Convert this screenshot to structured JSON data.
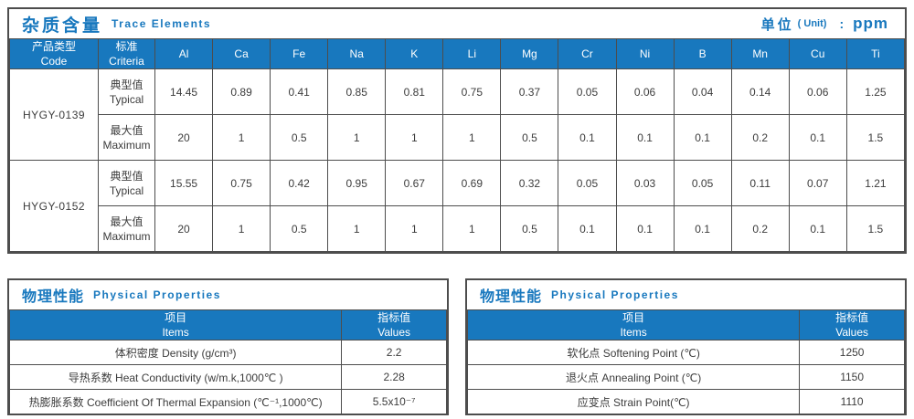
{
  "colors": {
    "accent_blue": "#1878BE",
    "border_gray": "#4D4D4D"
  },
  "trace_section": {
    "title_zh": "杂质含量",
    "title_en": "Trace Elements",
    "unit": {
      "zh": "单位",
      "en": "( Unit)",
      "colon": ":",
      "value": "ppm"
    },
    "headers": {
      "code_zh": "产品类型",
      "code_en": "Code",
      "criteria_zh": "标准",
      "criteria_en": "Criteria"
    },
    "elements": [
      "Al",
      "Ca",
      "Fe",
      "Na",
      "K",
      "Li",
      "Mg",
      "Cr",
      "Ni",
      "B",
      "Mn",
      "Cu",
      "Ti"
    ],
    "groups": [
      {
        "code": "HYGY-0139",
        "rows": [
          {
            "label_zh": "典型值",
            "label_en": "Typical",
            "values": [
              "14.45",
              "0.89",
              "0.41",
              "0.85",
              "0.81",
              "0.75",
              "0.37",
              "0.05",
              "0.06",
              "0.04",
              "0.14",
              "0.06",
              "1.25"
            ]
          },
          {
            "label_zh": "最大值",
            "label_en": "Maximum",
            "values": [
              "20",
              "1",
              "0.5",
              "1",
              "1",
              "1",
              "0.5",
              "0.1",
              "0.1",
              "0.1",
              "0.2",
              "0.1",
              "1.5"
            ]
          }
        ]
      },
      {
        "code": "HYGY-0152",
        "rows": [
          {
            "label_zh": "典型值",
            "label_en": "Typical",
            "values": [
              "15.55",
              "0.75",
              "0.42",
              "0.95",
              "0.67",
              "0.69",
              "0.32",
              "0.05",
              "0.03",
              "0.05",
              "0.11",
              "0.07",
              "1.21"
            ]
          },
          {
            "label_zh": "最大值",
            "label_en": "Maximum",
            "values": [
              "20",
              "1",
              "0.5",
              "1",
              "1",
              "1",
              "0.5",
              "0.1",
              "0.1",
              "0.1",
              "0.2",
              "0.1",
              "1.5"
            ]
          }
        ]
      }
    ]
  },
  "physical_left": {
    "title_zh": "物理性能",
    "title_en": "Physical Properties",
    "headers": {
      "item_zh": "项目",
      "item_en": "Items",
      "value_zh": "指标值",
      "value_en": "Values"
    },
    "rows": [
      {
        "item": "体积密度 Density (g/cm³)",
        "value": "2.2"
      },
      {
        "item": "导热系数 Heat Conductivity (w/m.k,1000℃ )",
        "value": "2.28"
      },
      {
        "item": "热膨胀系数 Coefficient Of Thermal Expansion (℃⁻¹,1000℃)",
        "value": "5.5x10⁻⁷"
      }
    ]
  },
  "physical_right": {
    "title_zh": "物理性能",
    "title_en": "Physical Properties",
    "headers": {
      "item_zh": "项目",
      "item_en": "Items",
      "value_zh": "指标值",
      "value_en": "Values"
    },
    "rows": [
      {
        "item": "软化点 Softening Point (℃)",
        "value": "1250"
      },
      {
        "item": "退火点 Annealing Point (℃)",
        "value": "1150"
      },
      {
        "item": "应变点 Strain Point(℃)",
        "value": "1110"
      }
    ]
  }
}
